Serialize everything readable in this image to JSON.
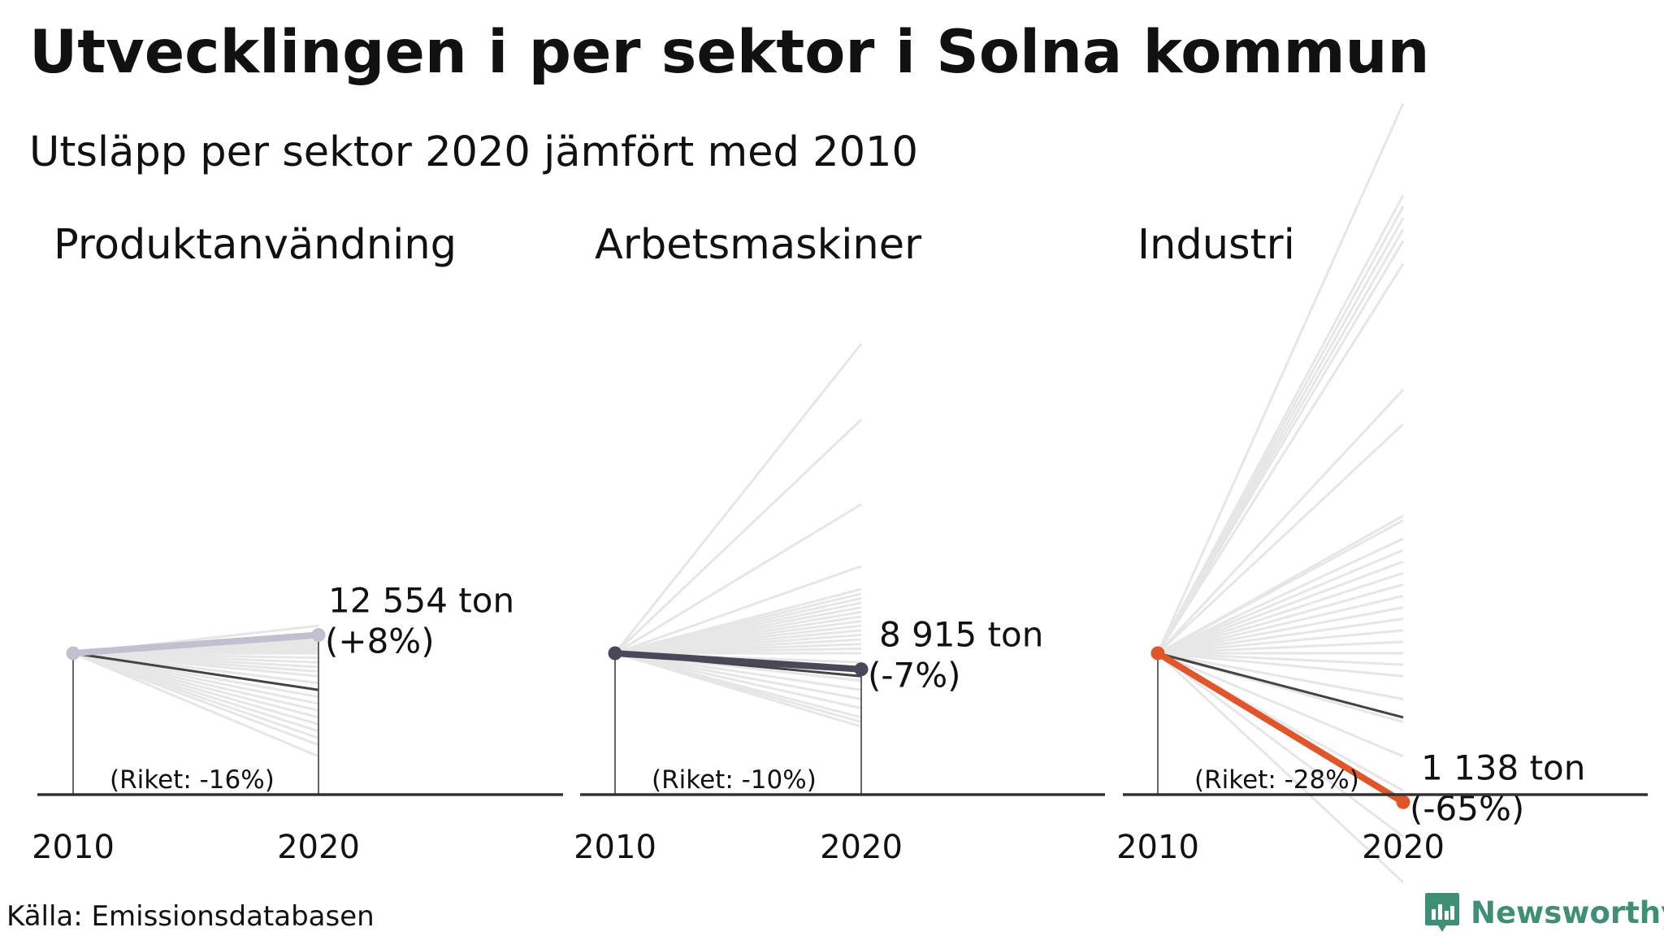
{
  "title": "Utvecklingen i per sektor i Solna kommun",
  "subtitle": "Utsläpp per sektor 2020 jämfört med 2010",
  "source": "Källa: Emissionsdatabasen",
  "brand": "Newsworthy",
  "colors": {
    "background_lines": "#e6e6e6",
    "riket_line": "#444444",
    "axis": "#333333",
    "brand": "#3f8f74"
  },
  "chart_data": [
    {
      "type": "line",
      "title": "Produktanvändning",
      "x": [
        "2010",
        "2020"
      ],
      "highlight": {
        "change_pct": 8,
        "value_label": "12 554 ton",
        "change_label": "(+8%)",
        "color": "#c2bfcf"
      },
      "riket": {
        "change_pct": -16,
        "label": "(Riket: -16%)"
      },
      "other_municipalities_change_pct": [
        12,
        7,
        6,
        5,
        4,
        3,
        2,
        1,
        0,
        -2,
        -4,
        -6,
        -8,
        -10,
        -13,
        -16,
        -19,
        -22,
        -25,
        -28,
        -31,
        -34,
        -37,
        -40,
        -45
      ]
    },
    {
      "type": "line",
      "title": "Arbetsmaskiner",
      "x": [
        "2010",
        "2020"
      ],
      "highlight": {
        "change_pct": -7,
        "value_label": "8 915 ton",
        "change_label": "(-7%)",
        "color": "#4a4858"
      },
      "riket": {
        "change_pct": -10,
        "label": "(Riket: -10%)"
      },
      "other_municipalities_change_pct": [
        135,
        102,
        65,
        38,
        28,
        26,
        24,
        22,
        20,
        18,
        16,
        14,
        12,
        10,
        8,
        6,
        4,
        2,
        0,
        -4,
        -8,
        -12,
        -16,
        -20,
        -24,
        -28,
        -30,
        -32
      ]
    },
    {
      "type": "line",
      "title": "Industri",
      "x": [
        "2010",
        "2020"
      ],
      "highlight": {
        "change_pct": -65,
        "value_label": "1 138 ton",
        "change_label": "(-65%)",
        "color": "#e0562b"
      },
      "riket": {
        "change_pct": -28,
        "label": "(Riket: -28%)"
      },
      "other_municipalities_change_pct": [
        240,
        200,
        195,
        190,
        185,
        180,
        170,
        115,
        100,
        60,
        58,
        50,
        45,
        40,
        35,
        30,
        25,
        20,
        15,
        10,
        5,
        0,
        -5,
        -10,
        -20,
        -30,
        -45,
        -60,
        -80,
        -100
      ]
    }
  ]
}
